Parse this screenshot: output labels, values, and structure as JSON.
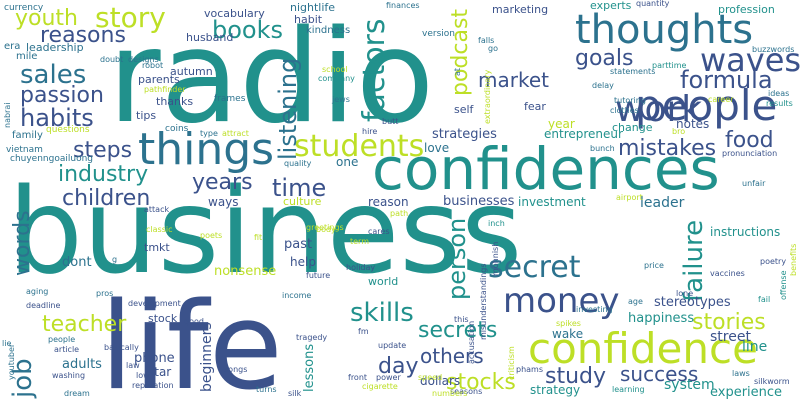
{
  "words": [
    {
      "text": "business",
      "color": "#21918c"
    },
    {
      "text": "radio",
      "color": "#21918c"
    },
    {
      "text": "life",
      "color": "#3b528b"
    },
    {
      "text": "confidences",
      "color": "#21918c"
    },
    {
      "text": "confidence",
      "color": "#bddf26"
    },
    {
      "text": "thoughts",
      "color": "#2c728e"
    },
    {
      "text": "people",
      "color": "#3b528b"
    },
    {
      "text": "things",
      "color": "#2c728e"
    },
    {
      "text": "work",
      "color": "#3b528b"
    },
    {
      "text": "money",
      "color": "#3b528b"
    },
    {
      "text": "students",
      "color": "#bddf26"
    },
    {
      "text": "waves",
      "color": "#3b528b"
    },
    {
      "text": "secret",
      "color": "#2c728e"
    },
    {
      "text": "story",
      "color": "#bddf26"
    },
    {
      "text": "sales",
      "color": "#2c728e"
    },
    {
      "text": "habits",
      "color": "#3b528b"
    },
    {
      "text": "passion",
      "color": "#3b528b"
    },
    {
      "text": "reasons",
      "color": "#3b528b"
    },
    {
      "text": "youth",
      "color": "#bddf26"
    },
    {
      "text": "books",
      "color": "#21918c"
    },
    {
      "text": "factors",
      "color": "#21918c"
    },
    {
      "text": "listening",
      "color": "#2c728e"
    },
    {
      "text": "goals",
      "color": "#3b528b"
    },
    {
      "text": "formula",
      "color": "#3b528b"
    },
    {
      "text": "podcast",
      "color": "#bddf26"
    },
    {
      "text": "market",
      "color": "#3b528b"
    },
    {
      "text": "food",
      "color": "#3b528b"
    },
    {
      "text": "mistakes",
      "color": "#3b528b"
    },
    {
      "text": "steps",
      "color": "#3b528b"
    },
    {
      "text": "time",
      "color": "#3b528b"
    },
    {
      "text": "industry",
      "color": "#21918c"
    },
    {
      "text": "years",
      "color": "#3b528b"
    },
    {
      "text": "children",
      "color": "#3b528b"
    },
    {
      "text": "skills",
      "color": "#21918c"
    },
    {
      "text": "person",
      "color": "#21918c"
    },
    {
      "text": "failure",
      "color": "#21918c"
    },
    {
      "text": "stories",
      "color": "#bddf26"
    },
    {
      "text": "secrets",
      "color": "#21918c"
    },
    {
      "text": "teacher",
      "color": "#bddf26"
    },
    {
      "text": "job",
      "color": "#2c728e"
    },
    {
      "text": "words",
      "color": "#2c728e"
    },
    {
      "text": "day",
      "color": "#3b528b"
    },
    {
      "text": "others",
      "color": "#3b528b"
    },
    {
      "text": "success",
      "color": "#3b528b"
    },
    {
      "text": "study",
      "color": "#3b528b"
    },
    {
      "text": "stocks",
      "color": "#bddf26"
    },
    {
      "text": "strategies",
      "color": "#3b528b"
    },
    {
      "text": "businesses",
      "color": "#3b528b"
    },
    {
      "text": "investment",
      "color": "#21918c"
    },
    {
      "text": "leader",
      "color": "#2c728e"
    },
    {
      "text": "system",
      "color": "#21918c"
    },
    {
      "text": "experience",
      "color": "#21918c"
    },
    {
      "text": "line",
      "color": "#21918c"
    },
    {
      "text": "street",
      "color": "#3b528b"
    },
    {
      "text": "happiness",
      "color": "#21918c"
    },
    {
      "text": "stereotypes",
      "color": "#3b528b"
    },
    {
      "text": "entrepreneur",
      "color": "#21918c"
    },
    {
      "text": "instructions",
      "color": "#21918c"
    },
    {
      "text": "strategy",
      "color": "#21918c"
    },
    {
      "text": "nonsense",
      "color": "#bddf26"
    },
    {
      "text": "help",
      "color": "#3b528b"
    },
    {
      "text": "past",
      "color": "#3b528b"
    },
    {
      "text": "dont",
      "color": "#2c728e"
    },
    {
      "text": "adults",
      "color": "#2c728e"
    },
    {
      "text": "phone",
      "color": "#3b528b"
    },
    {
      "text": "star",
      "color": "#3b528b"
    },
    {
      "text": "beginners",
      "color": "#3b528b"
    },
    {
      "text": "lessons",
      "color": "#21918c"
    },
    {
      "text": "dollars",
      "color": "#3b528b"
    },
    {
      "text": "wake",
      "color": "#2c728e"
    },
    {
      "text": "world",
      "color": "#21918c"
    },
    {
      "text": "reason",
      "color": "#3b528b"
    },
    {
      "text": "love",
      "color": "#2c728e"
    },
    {
      "text": "one",
      "color": "#2c728e"
    },
    {
      "text": "culture",
      "color": "#bddf26"
    },
    {
      "text": "ways",
      "color": "#3b528b"
    },
    {
      "text": "tmkt",
      "color": "#3b528b"
    },
    {
      "text": "stock",
      "color": "#3b528b"
    },
    {
      "text": "year",
      "color": "#bddf26"
    },
    {
      "text": "self",
      "color": "#3b528b"
    },
    {
      "text": "fear",
      "color": "#3b528b"
    },
    {
      "text": "change",
      "color": "#21918c"
    },
    {
      "text": "notes",
      "color": "#3b528b"
    },
    {
      "text": "experts",
      "color": "#21918c"
    },
    {
      "text": "marketing",
      "color": "#3b528b"
    },
    {
      "text": "profession",
      "color": "#21918c"
    },
    {
      "text": "nightlife",
      "color": "#2c728e"
    },
    {
      "text": "habit",
      "color": "#3b528b"
    },
    {
      "text": "vocabulary",
      "color": "#3b528b"
    },
    {
      "text": "kindness",
      "color": "#2c728e"
    },
    {
      "text": "husband",
      "color": "#3b528b"
    },
    {
      "text": "autumn",
      "color": "#3b528b"
    },
    {
      "text": "parents",
      "color": "#3b528b"
    },
    {
      "text": "thanks",
      "color": "#3b528b"
    },
    {
      "text": "tips",
      "color": "#3b528b"
    },
    {
      "text": "leadership",
      "color": "#2c728e"
    },
    {
      "text": "era",
      "color": "#2c728e"
    },
    {
      "text": "mile",
      "color": "#2c728e"
    },
    {
      "text": "currency",
      "color": "#2c728e"
    },
    {
      "text": "family",
      "color": "#2c728e"
    },
    {
      "text": "questions",
      "color": "#bddf26"
    },
    {
      "text": "vietnam",
      "color": "#2c728e"
    },
    {
      "text": "chuyenngoailuong",
      "color": "#2c728e"
    },
    {
      "text": "designs",
      "color": "#2c728e"
    },
    {
      "text": "robot",
      "color": "#2c728e"
    },
    {
      "text": "doubt",
      "color": "#2c728e"
    },
    {
      "text": "frames",
      "color": "#2c728e"
    },
    {
      "text": "coins",
      "color": "#2c728e"
    },
    {
      "text": "type",
      "color": "#2c728e"
    },
    {
      "text": "attract",
      "color": "#bddf26"
    },
    {
      "text": "school",
      "color": "#bddf26"
    },
    {
      "text": "company",
      "color": "#21918c"
    },
    {
      "text": "jews",
      "color": "#2c728e"
    },
    {
      "text": "version",
      "color": "#2c728e"
    },
    {
      "text": "finances",
      "color": "#2c728e"
    },
    {
      "text": "falls",
      "color": "#2c728e"
    },
    {
      "text": "go",
      "color": "#2c728e"
    },
    {
      "text": "quantity",
      "color": "#3b528b"
    },
    {
      "text": "parttime",
      "color": "#21918c"
    },
    {
      "text": "results",
      "color": "#21918c"
    },
    {
      "text": "buzzwords",
      "color": "#2c728e"
    },
    {
      "text": "ideas",
      "color": "#2c728e"
    },
    {
      "text": "career",
      "color": "#bddf26"
    },
    {
      "text": "statements",
      "color": "#2c728e"
    },
    {
      "text": "delay",
      "color": "#2c728e"
    },
    {
      "text": "tutoring",
      "color": "#2c728e"
    },
    {
      "text": "clothes",
      "color": "#2c728e"
    },
    {
      "text": "bunch",
      "color": "#2c728e"
    },
    {
      "text": "pronunciation",
      "color": "#3b528b"
    },
    {
      "text": "bro",
      "color": "#bddf26"
    },
    {
      "text": "unfair",
      "color": "#2c728e"
    },
    {
      "text": "butt",
      "color": "#3b528b"
    },
    {
      "text": "hire",
      "color": "#3b528b"
    },
    {
      "text": "airport",
      "color": "#bddf26"
    },
    {
      "text": "quality",
      "color": "#2c728e"
    },
    {
      "text": "greetings",
      "color": "#bddf26"
    },
    {
      "text": "path",
      "color": "#bddf26"
    },
    {
      "text": "attack",
      "color": "#3b528b"
    },
    {
      "text": "aging",
      "color": "#2c728e"
    },
    {
      "text": "classic",
      "color": "#bddf26"
    },
    {
      "text": "poets",
      "color": "#bddf26"
    },
    {
      "text": "body",
      "color": "#bddf26"
    },
    {
      "text": "term",
      "color": "#bddf26"
    },
    {
      "text": "cares",
      "color": "#3b528b"
    },
    {
      "text": "inch",
      "color": "#21918c"
    },
    {
      "text": "price",
      "color": "#2c728e"
    },
    {
      "text": "poetry",
      "color": "#3b528b"
    },
    {
      "text": "vaccines",
      "color": "#3b528b"
    },
    {
      "text": "lone",
      "color": "#3b528b"
    },
    {
      "text": "age",
      "color": "#2c728e"
    },
    {
      "text": "spikes",
      "color": "#bddf26"
    },
    {
      "text": "investing",
      "color": "#2c728e"
    },
    {
      "text": "laws",
      "color": "#2c728e"
    },
    {
      "text": "silkworm",
      "color": "#3b528b"
    },
    {
      "text": "deadline",
      "color": "#3b528b"
    },
    {
      "text": "development",
      "color": "#3b528b"
    },
    {
      "text": "income",
      "color": "#2c728e"
    },
    {
      "text": "good",
      "color": "#3b528b"
    },
    {
      "text": "future",
      "color": "#3b528b"
    },
    {
      "text": "holiday",
      "color": "#3b528b"
    },
    {
      "text": "tragedy",
      "color": "#3b528b"
    },
    {
      "text": "update",
      "color": "#3b528b"
    },
    {
      "text": "front",
      "color": "#3b528b"
    },
    {
      "text": "power",
      "color": "#3b528b"
    },
    {
      "text": "speed",
      "color": "#bddf26"
    },
    {
      "text": "cigarette",
      "color": "#bddf26"
    },
    {
      "text": "seasons",
      "color": "#3b528b"
    },
    {
      "text": "phams",
      "color": "#3b528b"
    },
    {
      "text": "learning",
      "color": "#21918c"
    },
    {
      "text": "article",
      "color": "#3b528b"
    },
    {
      "text": "washing",
      "color": "#3b528b"
    },
    {
      "text": "people",
      "color": "#2c728e"
    },
    {
      "text": "lie",
      "color": "#2c728e"
    },
    {
      "text": "basically",
      "color": "#3b528b"
    },
    {
      "text": "low",
      "color": "#3b528b"
    },
    {
      "text": "law",
      "color": "#3b528b"
    },
    {
      "text": "reputation",
      "color": "#3b528b"
    },
    {
      "text": "songs",
      "color": "#3b528b"
    },
    {
      "text": "dream",
      "color": "#2c728e"
    },
    {
      "text": "silk",
      "color": "#3b528b"
    },
    {
      "text": "turns",
      "color": "#2c728e"
    },
    {
      "text": "numbers",
      "color": "#bddf26"
    },
    {
      "text": "youtuber",
      "color": "#2c728e"
    },
    {
      "text": "pros",
      "color": "#2c728e"
    },
    {
      "text": "fit",
      "color": "#bddf26"
    },
    {
      "text": "fm",
      "color": "#3b528b"
    },
    {
      "text": "this",
      "color": "#3b528b"
    },
    {
      "text": "offense",
      "color": "#21918c"
    },
    {
      "text": "benefits",
      "color": "#bddf26"
    },
    {
      "text": "fail",
      "color": "#21918c"
    },
    {
      "text": "pathfinder",
      "color": "#bddf26"
    },
    {
      "text": "nabrai",
      "color": "#2c728e"
    },
    {
      "text": "mohnish",
      "color": "#3b528b"
    },
    {
      "text": "misunderstandings",
      "color": "#3b528b"
    },
    {
      "text": "accusation",
      "color": "#3b528b"
    },
    {
      "text": "criticism",
      "color": "#bddf26"
    },
    {
      "text": "extraordinary",
      "color": "#bddf26"
    },
    {
      "text": "at",
      "color": "#2c728e"
    },
    {
      "text": "g",
      "color": "#2c728e"
    }
  ]
}
